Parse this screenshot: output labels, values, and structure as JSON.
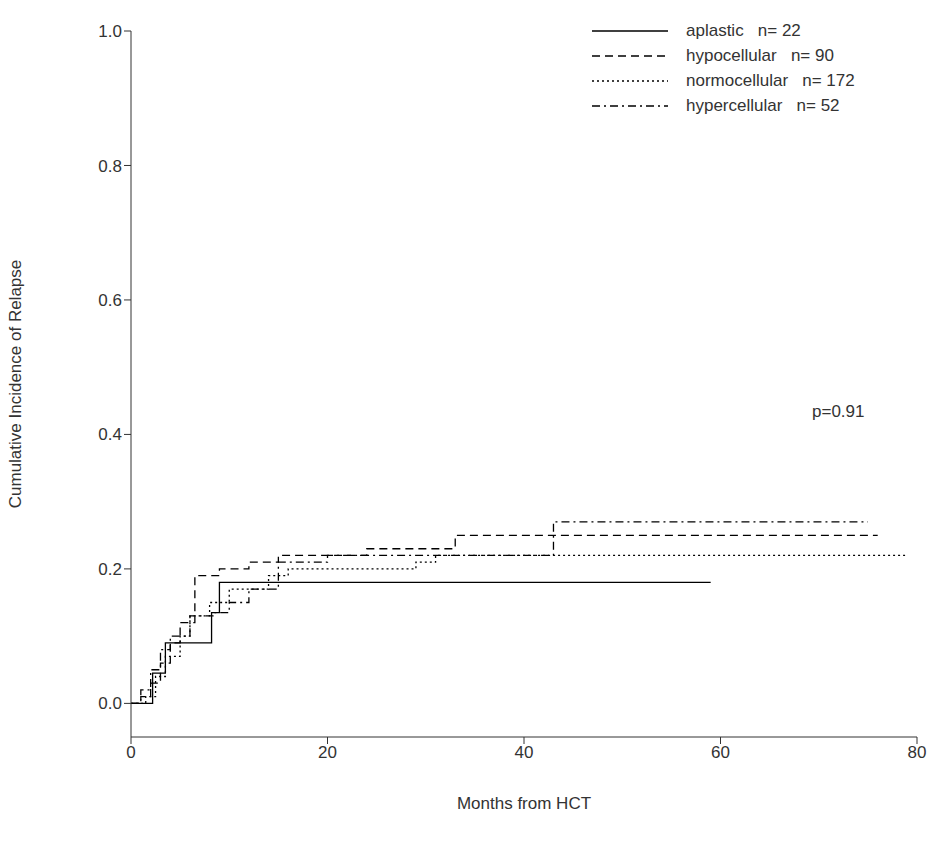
{
  "chart_data": {
    "type": "line",
    "title": null,
    "x_label": "Months from HCT",
    "y_label": "Cumulative Incidence of Relapse",
    "annotation": "p=0.91",
    "xlim": [
      0,
      80
    ],
    "xticks": [
      0,
      20,
      40,
      60,
      80
    ],
    "ylim": [
      -0.05,
      1.0
    ],
    "yticks": [
      {
        "value": 0,
        "label": "0.0"
      },
      {
        "value": 0.2,
        "label": "0.2"
      },
      {
        "value": 0.4,
        "label": "0.4"
      },
      {
        "value": 0.6,
        "label": "0.6"
      },
      {
        "value": 0.8,
        "label": "0.8"
      },
      {
        "value": 1.0,
        "label": "1.0"
      }
    ],
    "legend": "top-right",
    "grid": false,
    "series": [
      {
        "name": "aplastic   n= 22",
        "color": "#000000",
        "line_style": "solid",
        "x": [
          0,
          2.2,
          3.5,
          8.2,
          9,
          59
        ],
        "values": [
          0,
          0.045,
          0.09,
          0.135,
          0.18,
          0.18
        ]
      },
      {
        "name": "hypocellular   n= 90",
        "color": "#000000",
        "line_style": "dashed",
        "x": [
          0,
          1,
          2,
          3,
          4,
          5,
          6.5,
          9,
          12,
          15,
          20,
          24,
          33,
          76
        ],
        "values": [
          0,
          0.01,
          0.03,
          0.06,
          0.09,
          0.12,
          0.19,
          0.2,
          0.21,
          0.22,
          0.22,
          0.23,
          0.25,
          0.25
        ]
      },
      {
        "name": "normocellular   n= 172",
        "color": "#000000",
        "line_style": "dotted",
        "x": [
          0,
          1.5,
          2.5,
          3.5,
          5,
          6,
          8,
          10,
          14,
          16,
          29,
          31,
          79
        ],
        "values": [
          0,
          0.01,
          0.04,
          0.07,
          0.1,
          0.13,
          0.15,
          0.17,
          0.19,
          0.2,
          0.21,
          0.22,
          0.22
        ]
      },
      {
        "name": "hypercellular   n= 52",
        "color": "#000000",
        "line_style": "dashdot",
        "x": [
          0,
          1,
          2,
          3,
          4,
          6,
          8.5,
          10,
          12,
          15,
          20,
          43,
          75
        ],
        "values": [
          0,
          0.02,
          0.05,
          0.08,
          0.1,
          0.13,
          0.135,
          0.15,
          0.17,
          0.21,
          0.22,
          0.27,
          0.27
        ]
      }
    ]
  }
}
